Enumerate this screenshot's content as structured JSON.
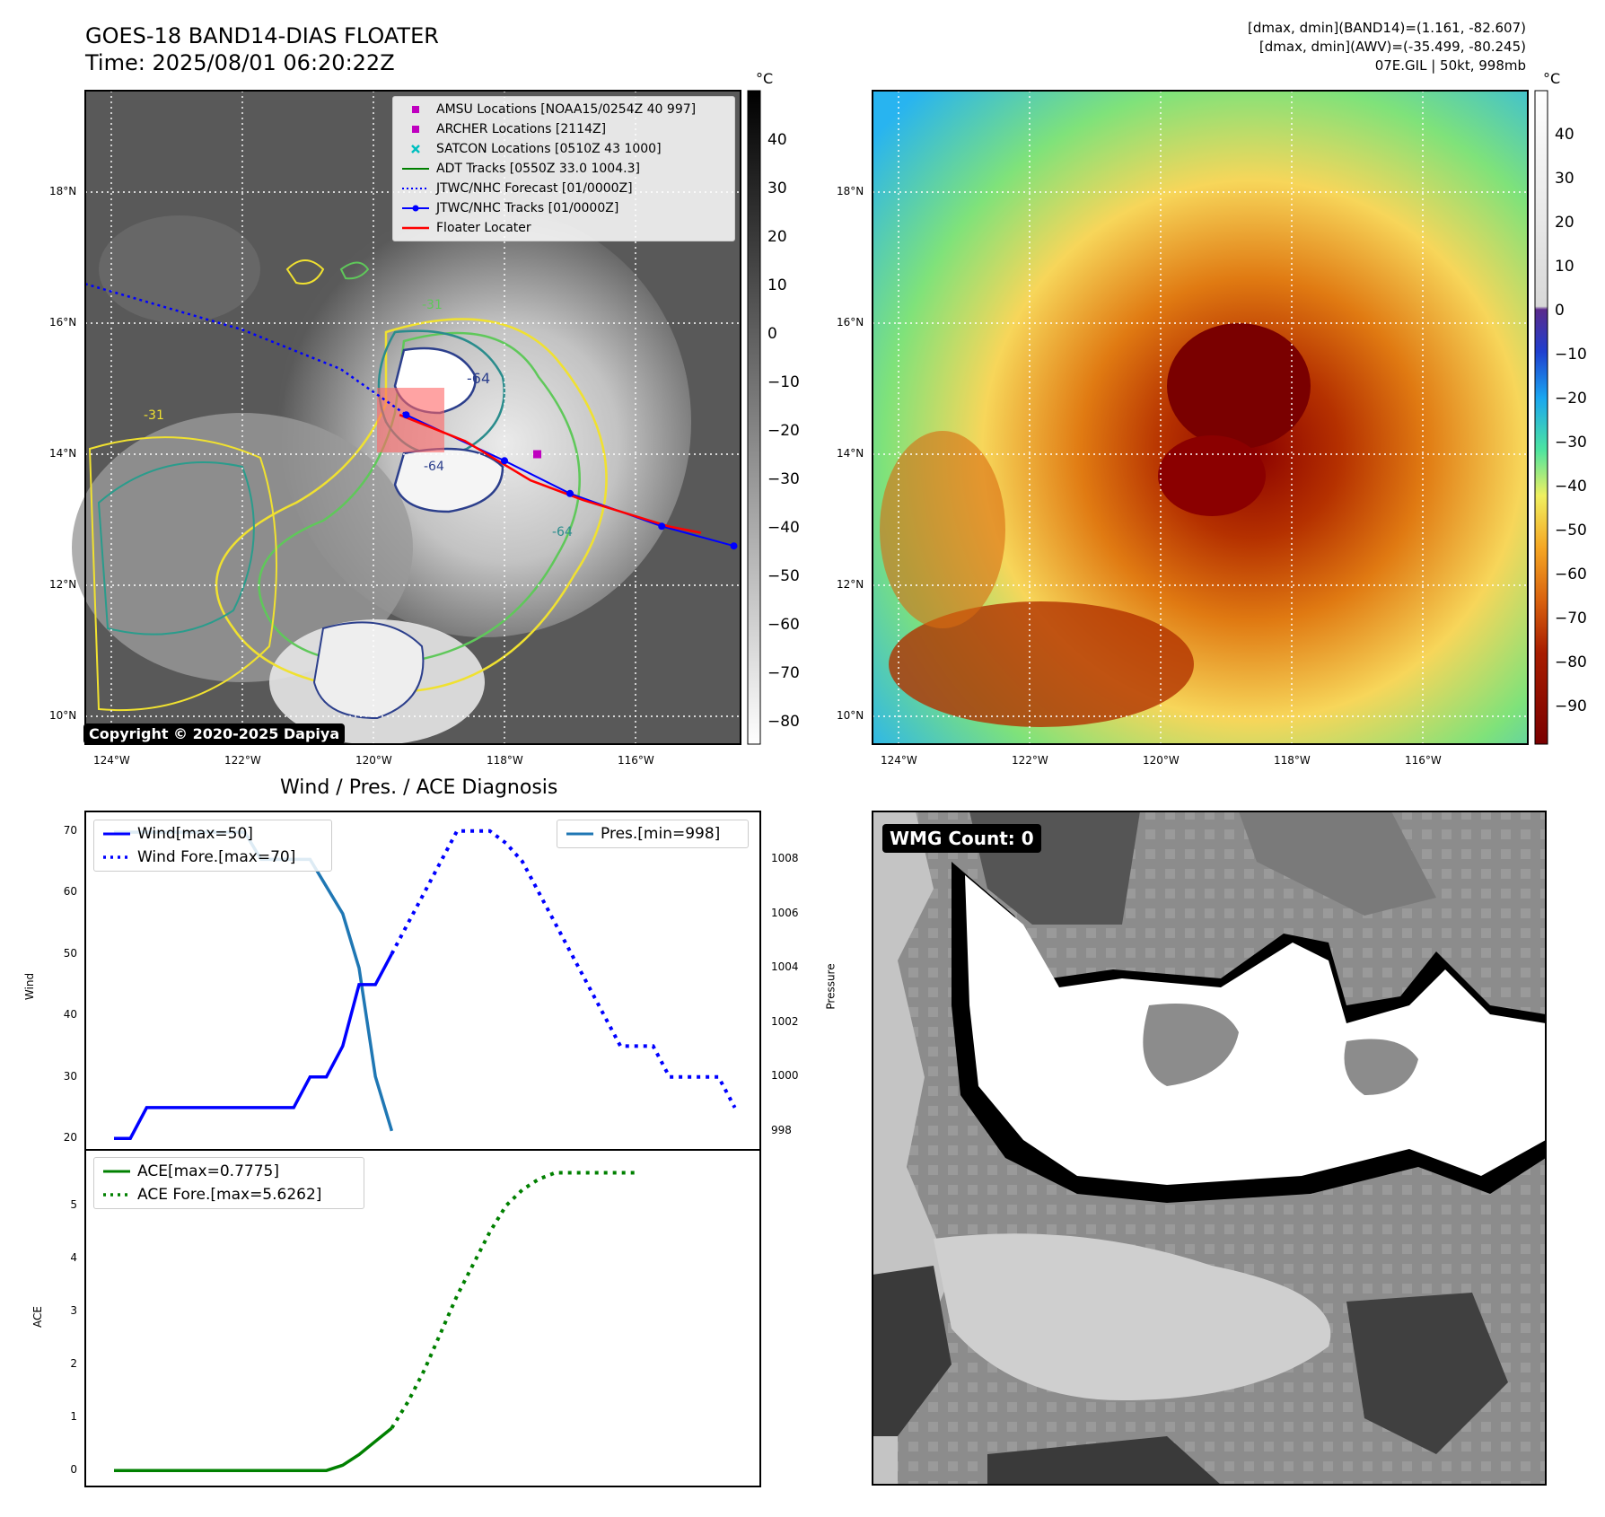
{
  "header": {
    "title_line1": "GOES-18 BAND14-DIAS FLOATER",
    "title_line2": "Time: 2025/08/01 06:20:22Z",
    "info_line1": "[dmax, dmin](BAND14)=(1.161, -82.607)",
    "info_line2": "[dmax, dmin](AWV)=(-35.499, -80.245)",
    "info_line3": "07E.GIL | 50kt, 998mb"
  },
  "map": {
    "lat_labels": [
      "18°N",
      "16°N",
      "14°N",
      "12°N",
      "10°N"
    ],
    "lon_labels": [
      "124°W",
      "122°W",
      "120°W",
      "118°W",
      "116°W"
    ],
    "copyright": "Copyright © 2020-2025 Dapiya",
    "contour_labels": [
      "-64",
      "-31",
      "-64",
      "-64",
      "-31"
    ],
    "legend": [
      {
        "label": "AMSU Locations [NOAA15/0254Z 40 997]",
        "color": "#bf00bf",
        "marker": "square"
      },
      {
        "label": "ARCHER Locations [2114Z]",
        "color": "#bf00bf",
        "marker": "square"
      },
      {
        "label": "SATCON Locations [0510Z 43 1000]",
        "color": "#00bfbf",
        "marker": "x"
      },
      {
        "label": "ADT Tracks [0550Z 33.0 1004.3]",
        "color": "#008000",
        "marker": "line"
      },
      {
        "label": "JTWC/NHC Forecast [01/0000Z]",
        "color": "#0000ff",
        "marker": "dotted"
      },
      {
        "label": "JTWC/NHC Tracks [01/0000Z]",
        "color": "#0000ff",
        "marker": "line-dot"
      },
      {
        "label": "Floater Locater",
        "color": "#ff0000",
        "marker": "line"
      }
    ],
    "track_forecast": [
      [
        -124.4,
        16.6
      ],
      [
        -122,
        15.9
      ],
      [
        -120.5,
        15.3
      ],
      [
        -119.5,
        14.6
      ]
    ],
    "track_best": [
      [
        -119.5,
        14.6
      ],
      [
        -118,
        13.9
      ],
      [
        -117,
        13.4
      ],
      [
        -115.6,
        12.9
      ],
      [
        -114.5,
        12.6
      ]
    ],
    "track_floater": [
      [
        -119.6,
        14.6
      ],
      [
        -118.6,
        14.2
      ],
      [
        -117.6,
        13.6
      ],
      [
        -116.8,
        13.3
      ],
      [
        -115.5,
        12.9
      ],
      [
        -115.0,
        12.8
      ]
    ],
    "archer_point": [
      -117.5,
      14.0
    ]
  },
  "colorbar_gray": {
    "unit": "°C",
    "ticks": [
      "40",
      "30",
      "20",
      "10",
      "0",
      "−10",
      "−20",
      "−30",
      "−40",
      "−50",
      "−60",
      "−70",
      "−80"
    ]
  },
  "colorbar_color": {
    "unit": "°C",
    "ticks": [
      "40",
      "30",
      "20",
      "10",
      "0",
      "−10",
      "−20",
      "−30",
      "−40",
      "−50",
      "−60",
      "−70",
      "−80",
      "−90"
    ]
  },
  "wmg": {
    "badge": "WMG Count: 0"
  },
  "chart_data": [
    {
      "type": "line",
      "title": "Wind / Pres. / ACE Diagnosis",
      "ylabel": "Wind",
      "ylim": [
        19,
        72
      ],
      "yticks": [
        20,
        30,
        40,
        50,
        60,
        70
      ],
      "series": [
        {
          "name": "Wind[max=50]",
          "style": "solid",
          "color": "#0000ff",
          "values": [
            20,
            20,
            25,
            25,
            25,
            25,
            25,
            25,
            25,
            25,
            25,
            25,
            30,
            30,
            35,
            45,
            45,
            50
          ]
        },
        {
          "name": "Wind Fore.[max=70]",
          "style": "dotted",
          "color": "#0000ff",
          "values": [
            50,
            55,
            60,
            65,
            70,
            70,
            70,
            68,
            65,
            60,
            55,
            50,
            45,
            40,
            35,
            35,
            35,
            30,
            30,
            30,
            30,
            25
          ]
        }
      ]
    },
    {
      "type": "line",
      "ylabel": "Pressure",
      "ylim": [
        997.5,
        1009.5
      ],
      "yticks": [
        998,
        1000,
        1002,
        1004,
        1006,
        1008
      ],
      "series": [
        {
          "name": "Pres.[min=998]",
          "style": "solid",
          "color": "#1f77b4",
          "values": [
            1009,
            1009,
            1009,
            1009,
            1009,
            1009,
            1009,
            1009,
            1009,
            1008,
            1008,
            1008,
            1008,
            1007,
            1006,
            1004,
            1000,
            998
          ]
        }
      ]
    },
    {
      "type": "line",
      "ylabel": "ACE",
      "ylim": [
        -0.2,
        5.9
      ],
      "yticks": [
        0,
        1,
        2,
        3,
        4,
        5
      ],
      "series": [
        {
          "name": "ACE[max=0.7775]",
          "style": "solid",
          "color": "#008000",
          "values": [
            0,
            0,
            0,
            0,
            0,
            0,
            0,
            0,
            0,
            0,
            0,
            0,
            0,
            0,
            0.1,
            0.3,
            0.55,
            0.8
          ]
        },
        {
          "name": "ACE Fore.[max=5.6262]",
          "style": "dotted",
          "color": "#008000",
          "values": [
            0.8,
            1.3,
            1.9,
            2.6,
            3.3,
            3.9,
            4.5,
            5.0,
            5.3,
            5.5,
            5.62,
            5.62,
            5.62,
            5.62,
            5.62,
            5.62
          ]
        }
      ]
    }
  ]
}
